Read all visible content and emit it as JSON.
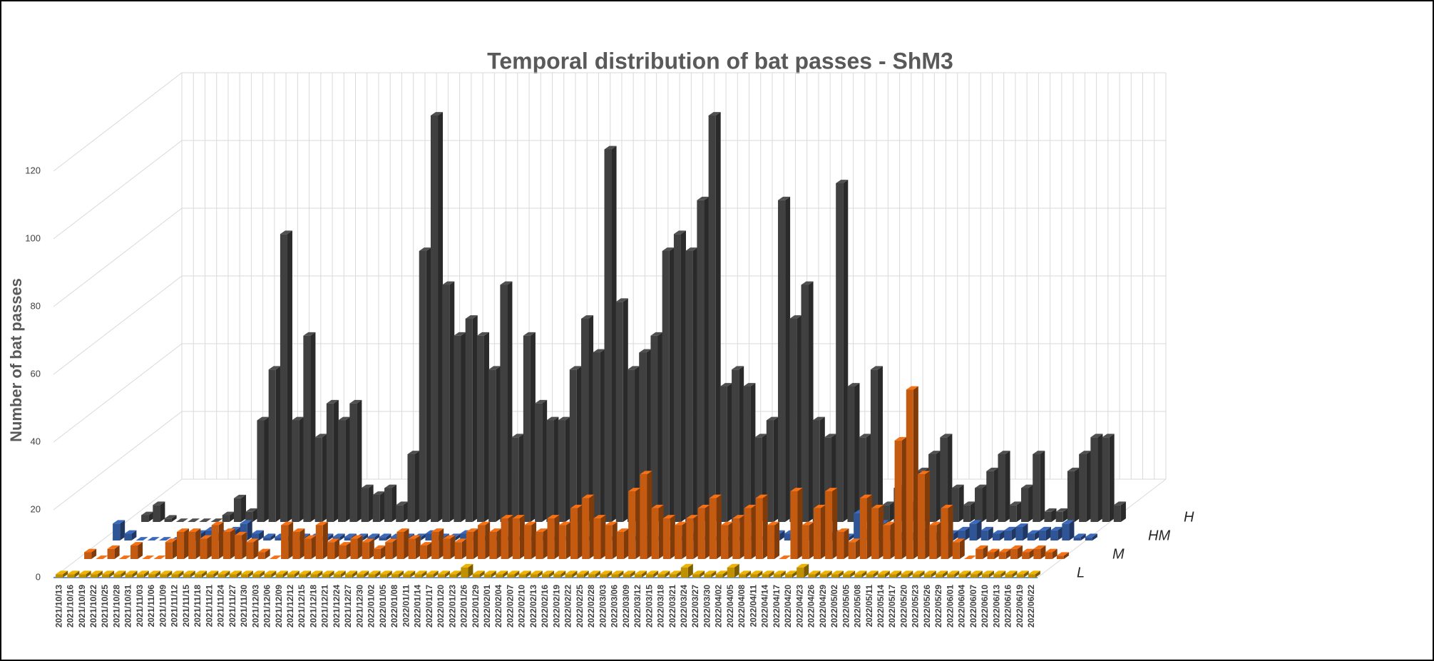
{
  "chart_data": {
    "type": "bar3d",
    "title": "Temporal distribution of bat passes - ShM3",
    "y_label": "Number of bat passes",
    "ylim": [
      0,
      120
    ],
    "yticks": [
      0,
      20,
      40,
      60,
      80,
      100,
      120
    ],
    "grid": true,
    "categories": [
      "2021/10/13",
      "2021/10/16",
      "2021/10/19",
      "2021/10/22",
      "2021/10/25",
      "2021/10/28",
      "2021/10/31",
      "2021/11/03",
      "2021/11/06",
      "2021/11/09",
      "2021/11/12",
      "2021/11/15",
      "2021/11/18",
      "2021/11/21",
      "2021/11/24",
      "2021/11/27",
      "2021/11/30",
      "2021/12/03",
      "2021/12/06",
      "2021/12/09",
      "2021/12/12",
      "2021/12/15",
      "2021/12/18",
      "2021/12/21",
      "2021/12/24",
      "2021/12/27",
      "2021/12/30",
      "2022/01/02",
      "2022/01/05",
      "2022/01/08",
      "2022/01/11",
      "2022/01/14",
      "2022/01/17",
      "2022/01/20",
      "2022/01/23",
      "2022/01/26",
      "2022/01/29",
      "2022/02/01",
      "2022/02/04",
      "2022/02/07",
      "2022/02/10",
      "2022/02/13",
      "2022/02/16",
      "2022/02/19",
      "2022/02/22",
      "2022/02/25",
      "2022/02/28",
      "2022/03/03",
      "2022/03/06",
      "2022/03/09",
      "2022/03/12",
      "2022/03/15",
      "2022/03/18",
      "2022/03/21",
      "2022/03/24",
      "2022/03/27",
      "2022/03/30",
      "2022/04/02",
      "2022/04/05",
      "2022/04/08",
      "2022/04/11",
      "2022/04/14",
      "2022/04/17",
      "2022/04/20",
      "2022/04/23",
      "2022/04/26",
      "2022/04/29",
      "2022/05/02",
      "2022/05/05",
      "2022/05/08",
      "2022/05/11",
      "2022/05/14",
      "2022/05/17",
      "2022/05/20",
      "2022/05/23",
      "2022/05/26",
      "2022/05/29",
      "2022/06/01",
      "2022/06/04",
      "2022/06/07",
      "2022/06/10",
      "2022/06/13",
      "2022/06/16",
      "2022/06/19",
      "2022/06/22"
    ],
    "series": [
      {
        "name": "L",
        "color": "#bf9000",
        "values": [
          1,
          1,
          1,
          1,
          1,
          1,
          1,
          1,
          1,
          1,
          1,
          1,
          1,
          1,
          1,
          1,
          1,
          1,
          1,
          1,
          1,
          1,
          1,
          1,
          1,
          1,
          1,
          1,
          1,
          1,
          1,
          1,
          1,
          1,
          1,
          3,
          1,
          1,
          1,
          1,
          1,
          1,
          1,
          1,
          1,
          1,
          1,
          1,
          1,
          1,
          1,
          1,
          1,
          1,
          3,
          1,
          1,
          1,
          3,
          1,
          1,
          1,
          1,
          1,
          3,
          1,
          1,
          1,
          1,
          1,
          1,
          1,
          1,
          1,
          1,
          1,
          1,
          1,
          1,
          1,
          1,
          1,
          1,
          1,
          1
        ]
      },
      {
        "name": "M",
        "color": "#c55a11",
        "values": [
          2,
          0,
          3,
          0,
          4,
          0,
          0,
          5,
          8,
          8,
          6,
          10,
          8,
          7,
          5,
          2,
          0,
          10,
          8,
          6,
          10,
          5,
          4,
          6,
          5,
          3,
          5,
          8,
          6,
          4,
          8,
          6,
          5,
          8,
          10,
          8,
          12,
          12,
          10,
          8,
          12,
          10,
          15,
          18,
          12,
          10,
          8,
          20,
          25,
          15,
          12,
          10,
          12,
          15,
          18,
          10,
          12,
          15,
          18,
          10,
          0,
          20,
          10,
          15,
          20,
          8,
          5,
          18,
          15,
          10,
          35,
          50,
          25,
          10,
          15,
          5,
          0,
          3,
          2,
          2,
          3,
          2,
          3,
          2,
          1
        ]
      },
      {
        "name": "HM",
        "color": "#2f5597",
        "values": [
          5,
          2,
          0,
          0,
          0,
          0,
          0,
          2,
          3,
          2,
          3,
          5,
          2,
          1,
          1,
          1,
          1,
          1,
          1,
          1,
          1,
          1,
          1,
          1,
          1,
          1,
          1,
          2,
          1,
          1,
          2,
          1,
          1,
          1,
          1,
          1,
          1,
          1,
          1,
          1,
          1,
          1,
          1,
          1,
          1,
          1,
          1,
          1,
          1,
          1,
          2,
          1,
          1,
          1,
          1,
          1,
          1,
          2,
          2,
          2,
          4,
          3,
          2,
          1,
          8,
          3,
          5,
          3,
          2,
          2,
          3,
          2,
          2,
          3,
          5,
          3,
          2,
          3,
          4,
          2,
          3,
          3,
          5,
          1,
          1
        ]
      },
      {
        "name": "H",
        "color": "#404040",
        "values": [
          2,
          5,
          1,
          0,
          0,
          0,
          0,
          2,
          7,
          3,
          30,
          45,
          85,
          30,
          55,
          25,
          35,
          30,
          35,
          10,
          8,
          10,
          5,
          20,
          80,
          120,
          70,
          55,
          60,
          55,
          45,
          70,
          25,
          55,
          35,
          30,
          30,
          45,
          60,
          50,
          110,
          65,
          45,
          50,
          55,
          80,
          85,
          80,
          95,
          120,
          40,
          45,
          40,
          25,
          30,
          95,
          60,
          70,
          30,
          25,
          100,
          40,
          25,
          45,
          5,
          10,
          5,
          15,
          20,
          25,
          10,
          5,
          10,
          15,
          20,
          5,
          10,
          20,
          3,
          3,
          15,
          20,
          25,
          25,
          5
        ]
      }
    ]
  }
}
